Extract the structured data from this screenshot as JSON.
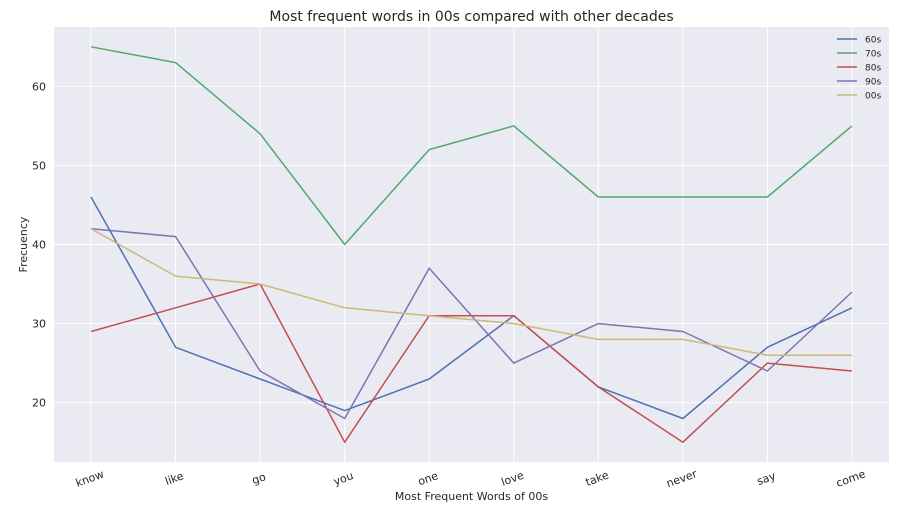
{
  "chart_data": {
    "type": "line",
    "title": "Most frequent words in 00s compared with other decades",
    "xlabel": "Most Frequent Words of 00s",
    "ylabel": "Frecuency",
    "categories": [
      "know",
      "like",
      "go",
      "you",
      "one",
      "love",
      "take",
      "never",
      "say",
      "come"
    ],
    "ylim": [
      12.5,
      67.5
    ],
    "yticks": [
      20,
      30,
      40,
      50,
      60
    ],
    "grid": true,
    "legend_position": "top-right",
    "series": [
      {
        "name": "60s",
        "color": "#4c72b0",
        "values": [
          46,
          27,
          23,
          19,
          23,
          31,
          22,
          18,
          27,
          32
        ]
      },
      {
        "name": "70s",
        "color": "#55a868",
        "values": [
          65,
          63,
          54,
          40,
          52,
          55,
          46,
          46,
          46,
          55
        ]
      },
      {
        "name": "80s",
        "color": "#c44e52",
        "values": [
          29,
          32,
          35,
          15,
          31,
          31,
          22,
          15,
          25,
          24
        ]
      },
      {
        "name": "90s",
        "color": "#8172b2",
        "values": [
          42,
          41,
          24,
          18,
          37,
          25,
          30,
          29,
          24,
          34
        ]
      },
      {
        "name": "00s",
        "color": "#ccb974",
        "values": [
          42,
          36,
          35,
          32,
          31,
          30,
          28,
          28,
          26,
          26
        ]
      }
    ]
  }
}
